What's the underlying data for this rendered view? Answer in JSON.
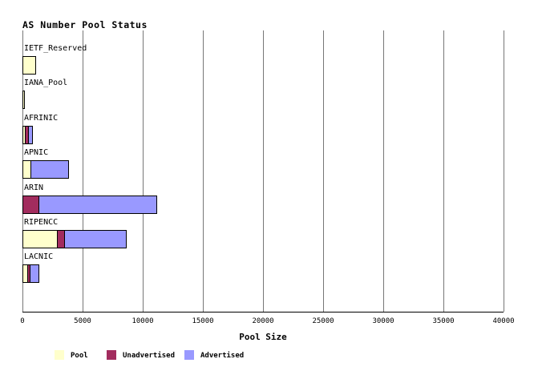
{
  "chart_data": {
    "type": "bar",
    "orientation": "horizontal",
    "stacked": true,
    "title": "AS Number Pool Status",
    "xlabel": "Pool Size",
    "ylabel": "",
    "xlim": [
      0,
      40000
    ],
    "xticks": [
      0,
      5000,
      10000,
      15000,
      20000,
      25000,
      30000,
      35000,
      40000
    ],
    "grid": "vertical",
    "legend_position": "bottom",
    "categories": [
      "IETF_Reserved",
      "IANA_Pool",
      "AFRINIC",
      "APNIC",
      "ARIN",
      "RIPENCC",
      "LACNIC"
    ],
    "series": [
      {
        "name": "Pool",
        "color": "#FFFFCC",
        "values": [
          1020,
          30,
          130,
          600,
          0,
          2770,
          330
        ]
      },
      {
        "name": "Unadvertised",
        "color": "#A22C5E",
        "values": [
          0,
          0,
          200,
          0,
          1250,
          540,
          160
        ]
      },
      {
        "name": "Advertised",
        "color": "#9999FF",
        "values": [
          0,
          0,
          250,
          3090,
          9730,
          5070,
          650
        ]
      }
    ],
    "totals": [
      1020,
      30,
      580,
      3690,
      10980,
      8380,
      1140
    ]
  },
  "colors": {
    "background": "#FFFFFF",
    "gridline": "#777777",
    "axis": "#000000",
    "text": "#000000",
    "pool": "#FFFFCC",
    "unadvertised": "#A22C5E",
    "advertised": "#9999FF"
  }
}
